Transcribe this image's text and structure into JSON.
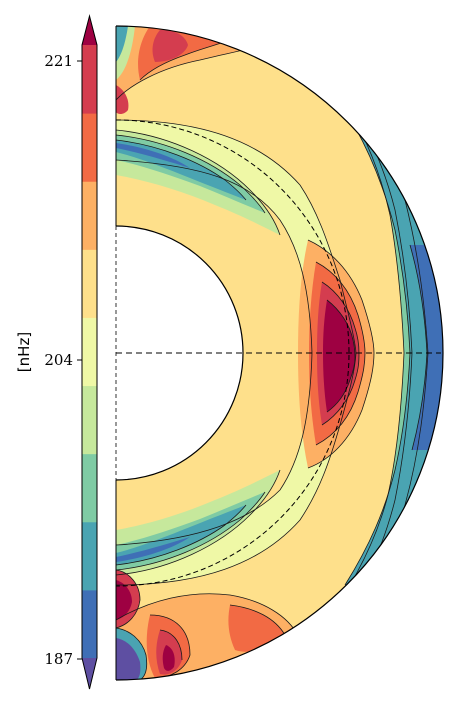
{
  "chart_data": {
    "type": "heatmap",
    "title": "",
    "colorbar": {
      "unit_label": "[nHz]",
      "ticks": [
        {
          "value": 221,
          "label": "221"
        },
        {
          "value": 204,
          "label": "204"
        },
        {
          "value": 187,
          "label": "187"
        }
      ],
      "range": [
        187,
        221
      ],
      "extend": "both",
      "colors": [
        "#5e4fa2",
        "#3f6fb6",
        "#4aa4b2",
        "#7fcba4",
        "#c6e89c",
        "#eff8a6",
        "#fee08b",
        "#fdb064",
        "#f26a44",
        "#d43d4f",
        "#9e0142"
      ]
    },
    "domain": {
      "shape": "half-annulus",
      "inner_radius_fraction": 0.39,
      "reference_circle_fraction": 0.71,
      "equator_line": "dashed"
    },
    "contour_levels": [
      187,
      190.4,
      193.8,
      197.2,
      200.6,
      204,
      207.4,
      210.8,
      214.2,
      217.6,
      221
    ],
    "regions": [
      {
        "feature": "equatorial-maximum",
        "value": 221
      },
      {
        "feature": "outer-equator",
        "value": 190
      },
      {
        "feature": "mid-zone",
        "value": 205
      },
      {
        "feature": "polar-south",
        "value": 187
      }
    ]
  }
}
